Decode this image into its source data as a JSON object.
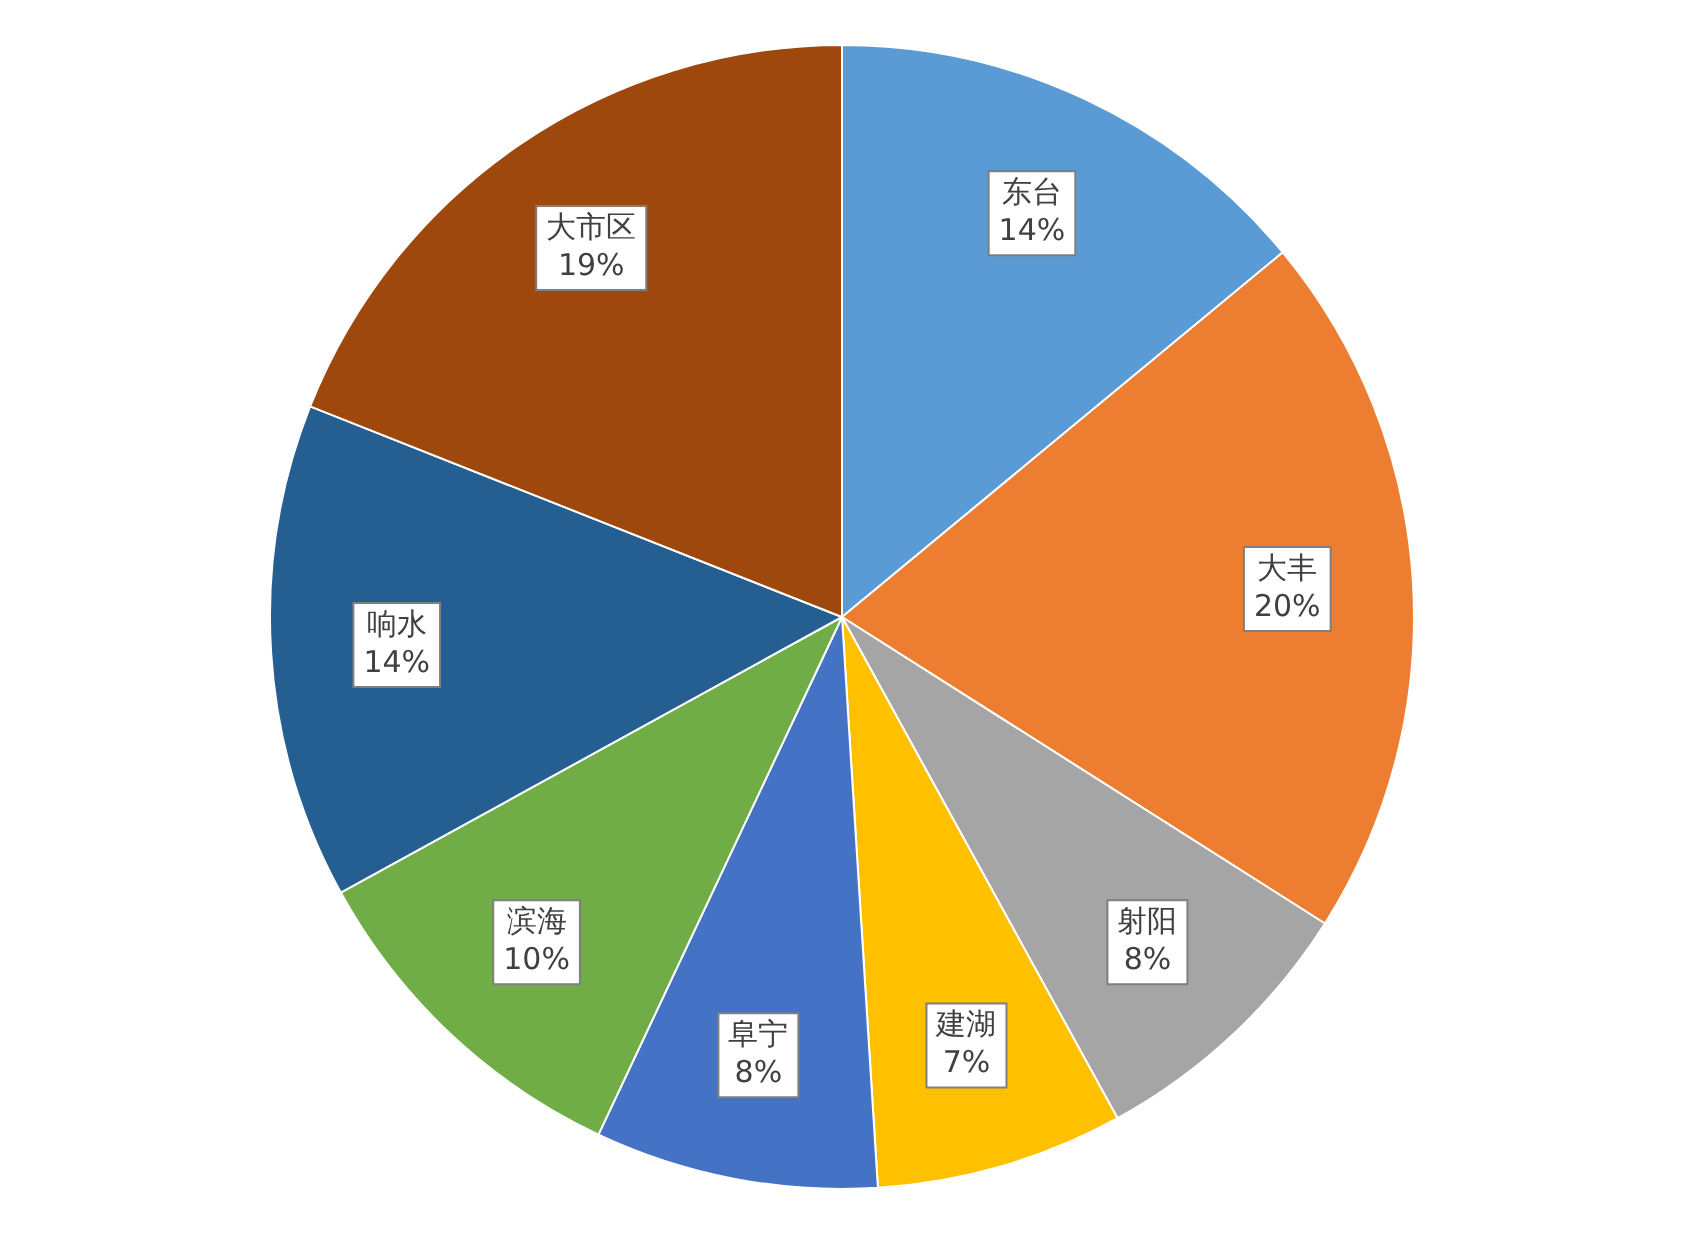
{
  "chart_data": {
    "type": "pie",
    "categories": [
      "东台",
      "大丰",
      "射阳",
      "建湖",
      "阜宁",
      "滨海",
      "响水",
      "大市区"
    ],
    "values": [
      14,
      20,
      8,
      7,
      8,
      10,
      14,
      19
    ],
    "value_labels": [
      "14%",
      "20%",
      "8%",
      "7%",
      "8%",
      "10%",
      "14%",
      "19%"
    ],
    "colors": [
      "#5b9bd5",
      "#ed7d31",
      "#a5a5a5",
      "#ffc000",
      "#4472c4",
      "#70ad47",
      "#255e91",
      "#9e480e"
    ],
    "legend": false
  }
}
